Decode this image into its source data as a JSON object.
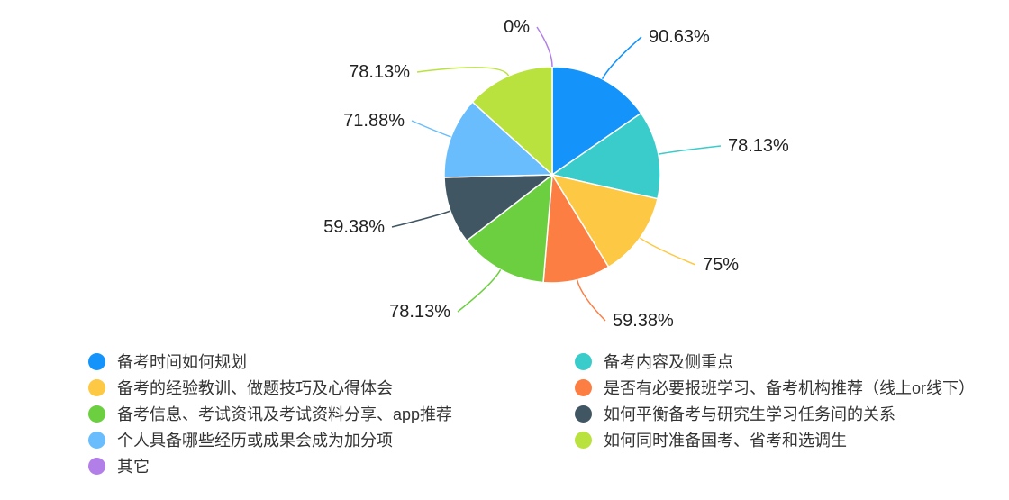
{
  "chart_data": {
    "type": "pie",
    "start_angle": "top, clockwise",
    "slices": [
      {
        "name": "备考时间如何规划",
        "value": 90.63,
        "label": "90.63%",
        "color": "#1494fb"
      },
      {
        "name": "备考内容及侧重点",
        "value": 78.13,
        "label": "78.13%",
        "color": "#3acccb"
      },
      {
        "name": "备考的经验教训、做题技巧及心得体会",
        "value": 75,
        "label": "75%",
        "color": "#fdc843"
      },
      {
        "name": "是否有必要报班学习、备考机构推荐（线上or线下）",
        "value": 59.38,
        "label": "59.38%",
        "color": "#fc7e43"
      },
      {
        "name": "备考信息、考试资讯及考试资料分享、app推荐",
        "value": 78.13,
        "label": "78.13%",
        "color": "#6ccf3f"
      },
      {
        "name": "如何平衡备考与研究生学习任务间的关系",
        "value": 59.38,
        "label": "59.38%",
        "color": "#405663"
      },
      {
        "name": "个人具备哪些经历或成果会成为加分项",
        "value": 71.88,
        "label": "71.88%",
        "color": "#69bdfc"
      },
      {
        "name": "如何同时准备国考、省考和选调生",
        "value": 78.13,
        "label": "78.13%",
        "color": "#b9e23e"
      },
      {
        "name": "其它",
        "value": 0,
        "label": "0%",
        "color": "#b27ee8"
      }
    ],
    "legend_placement": "bottom"
  }
}
